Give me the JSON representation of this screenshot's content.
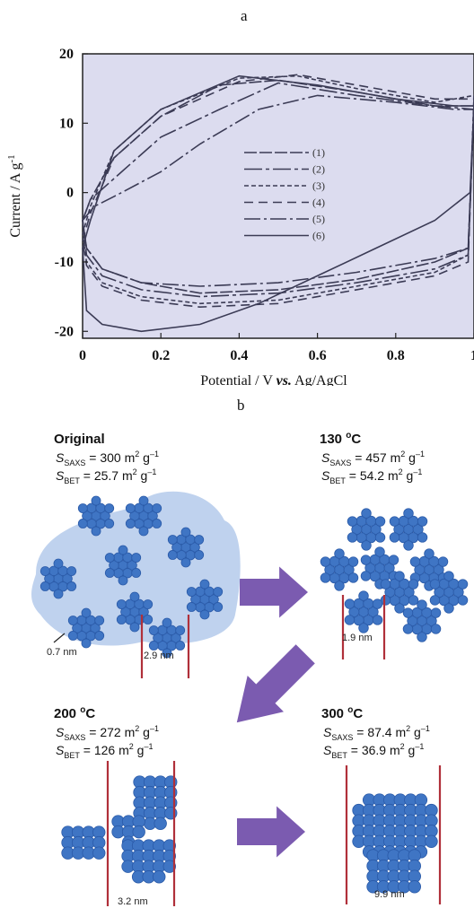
{
  "panel_a_label": "a",
  "panel_b_label": "b",
  "chart_data": {
    "type": "line",
    "xlabel_prefix": "Potential / V ",
    "xlabel_italic": "vs.",
    "xlabel_suffix": " Ag/AgCl",
    "ylabel": "Current / A g",
    "ylabel_sup": "-1",
    "xlim": [
      0,
      1.0
    ],
    "ylim": [
      -21,
      20
    ],
    "x_ticks": [
      0,
      0.2,
      0.4,
      0.6,
      0.8,
      1
    ],
    "x_tick_labels": [
      "0",
      "0.2",
      "0.4",
      "0.6",
      "0.8",
      "1"
    ],
    "y_ticks": [
      20,
      10,
      0,
      -10,
      -20
    ],
    "y_tick_labels": [
      "20",
      "10",
      "0",
      "-10",
      "-20"
    ],
    "grid": false,
    "legend_position": "center",
    "background": "#dcdcef",
    "series": [
      {
        "name": "(1)",
        "dash": "14,3",
        "x": [
          0,
          0.02,
          0.08,
          0.2,
          0.35,
          0.5,
          0.7,
          0.9,
          1.0,
          0.985,
          0.9,
          0.7,
          0.5,
          0.3,
          0.15,
          0.05,
          0.01,
          0
        ],
        "y": [
          -4,
          -1,
          5,
          11,
          15.5,
          16.2,
          14.5,
          12.5,
          12.5,
          -8,
          -10,
          -12.5,
          -14,
          -14.5,
          -13,
          -11,
          -8,
          -4
        ]
      },
      {
        "name": "(2)",
        "dash": "20,4,4,4",
        "x": [
          0,
          0.02,
          0.1,
          0.2,
          0.35,
          0.5,
          0.7,
          0.9,
          1.0,
          0.985,
          0.9,
          0.7,
          0.5,
          0.3,
          0.15,
          0.05,
          0.01,
          0
        ],
        "y": [
          -4,
          -1,
          3,
          8,
          12,
          15.8,
          14,
          12.5,
          12,
          -9,
          -11,
          -13,
          -14.5,
          -15,
          -14,
          -12,
          -9,
          -4
        ]
      },
      {
        "name": "(3)",
        "dash": "5,3",
        "x": [
          0,
          0.02,
          0.08,
          0.2,
          0.4,
          0.55,
          0.7,
          0.9,
          1.0,
          0.985,
          0.9,
          0.7,
          0.5,
          0.3,
          0.15,
          0.05,
          0.01,
          0
        ],
        "y": [
          -6,
          -2,
          6,
          12,
          16.5,
          16.8,
          15,
          13,
          14,
          -9,
          -11.5,
          -13.5,
          -15.5,
          -16,
          -15,
          -13,
          -10,
          -6
        ]
      },
      {
        "name": "(4)",
        "dash": "10,6",
        "x": [
          0,
          0.02,
          0.08,
          0.2,
          0.4,
          0.55,
          0.7,
          0.9,
          1.0,
          0.985,
          0.9,
          0.7,
          0.5,
          0.3,
          0.15,
          0.05,
          0.01,
          0
        ],
        "y": [
          -7,
          -3,
          5,
          11,
          16,
          17,
          15.5,
          13.5,
          13.5,
          -10,
          -12,
          -14,
          -16,
          -16.5,
          -15.5,
          -13.5,
          -10.5,
          -7
        ]
      },
      {
        "name": "(5)",
        "dash": "18,4,3,4",
        "x": [
          0,
          0.03,
          0.1,
          0.2,
          0.3,
          0.45,
          0.6,
          0.8,
          0.95,
          1.0,
          0.985,
          0.9,
          0.7,
          0.5,
          0.3,
          0.15,
          0.05,
          0.01,
          0
        ],
        "y": [
          -4,
          -2,
          0,
          3,
          7,
          12,
          14,
          13,
          12,
          12,
          -8,
          -9.5,
          -11.5,
          -13,
          -13.5,
          -13,
          -11,
          -8,
          -4
        ]
      },
      {
        "name": "(6)",
        "dash": "none",
        "x": [
          0,
          0.02,
          0.08,
          0.2,
          0.4,
          0.6,
          0.8,
          0.95,
          1.0,
          0.99,
          0.9,
          0.75,
          0.6,
          0.45,
          0.3,
          0.15,
          0.05,
          0.01,
          0
        ],
        "y": [
          -8,
          -4,
          6,
          12,
          16.8,
          15.5,
          13.5,
          12.5,
          12.5,
          0,
          -4,
          -8,
          -12,
          -16,
          -19,
          -20,
          -19,
          -17,
          -8
        ]
      }
    ]
  },
  "schematic": {
    "stages": [
      {
        "title": "Original",
        "title_sup": "",
        "saxs_prefix": "S",
        "saxs_sub": "SAXS",
        "saxs_value": " = 300 m",
        "saxs_sup": "2",
        "saxs_unit": " g",
        "saxs_unit_sup": "–1",
        "bet_prefix": "S",
        "bet_sub": "BET",
        "bet_value": " = 25.7 m",
        "bet_sup": "2",
        "bet_unit": " g",
        "bet_unit_sup": "–1"
      },
      {
        "title": "130 ",
        "title_sup": "o",
        "title_suffix": "C",
        "saxs_prefix": "S",
        "saxs_sub": "SAXS",
        "saxs_value": " = 457 m",
        "saxs_sup": "2",
        "saxs_unit": " g",
        "saxs_unit_sup": "–1",
        "bet_prefix": "S",
        "bet_sub": "BET",
        "bet_value": "  = 54.2 m",
        "bet_sup": "2",
        "bet_unit": " g",
        "bet_unit_sup": "–1"
      },
      {
        "title": "200 ",
        "title_sup": "o",
        "title_suffix": "C",
        "saxs_prefix": "S",
        "saxs_sub": "SAXS",
        "saxs_value": " = 272 m",
        "saxs_sup": "2",
        "saxs_unit": " g",
        "saxs_unit_sup": "–1",
        "bet_prefix": "S",
        "bet_sub": "BET",
        "bet_value": "  = 126 m",
        "bet_sup": "2",
        "bet_unit": " g",
        "bet_unit_sup": "–1"
      },
      {
        "title": "300 ",
        "title_sup": "o",
        "title_suffix": "C",
        "saxs_prefix": "S",
        "saxs_sub": "SAXS",
        "saxs_value": " = 87.4 m",
        "saxs_sup": "2",
        "saxs_unit": " g",
        "saxs_unit_sup": "–1",
        "bet_prefix": "S",
        "bet_sub": "BET",
        "bet_value": "  = 36.9 m",
        "bet_sup": "2",
        "bet_unit": " g",
        "bet_unit_sup": "–1"
      }
    ],
    "dimension_labels": [
      "0.7 nm",
      "2.9 nm",
      "1.9 nm",
      "3.2 nm",
      "9.9 nm"
    ],
    "colors": {
      "sphere": "#3f75c4",
      "sphere_edge": "#2a5aa8",
      "halo": "#a9c3e8",
      "arrow": "#7b5bb0",
      "dim_line": "#b0303a"
    }
  }
}
